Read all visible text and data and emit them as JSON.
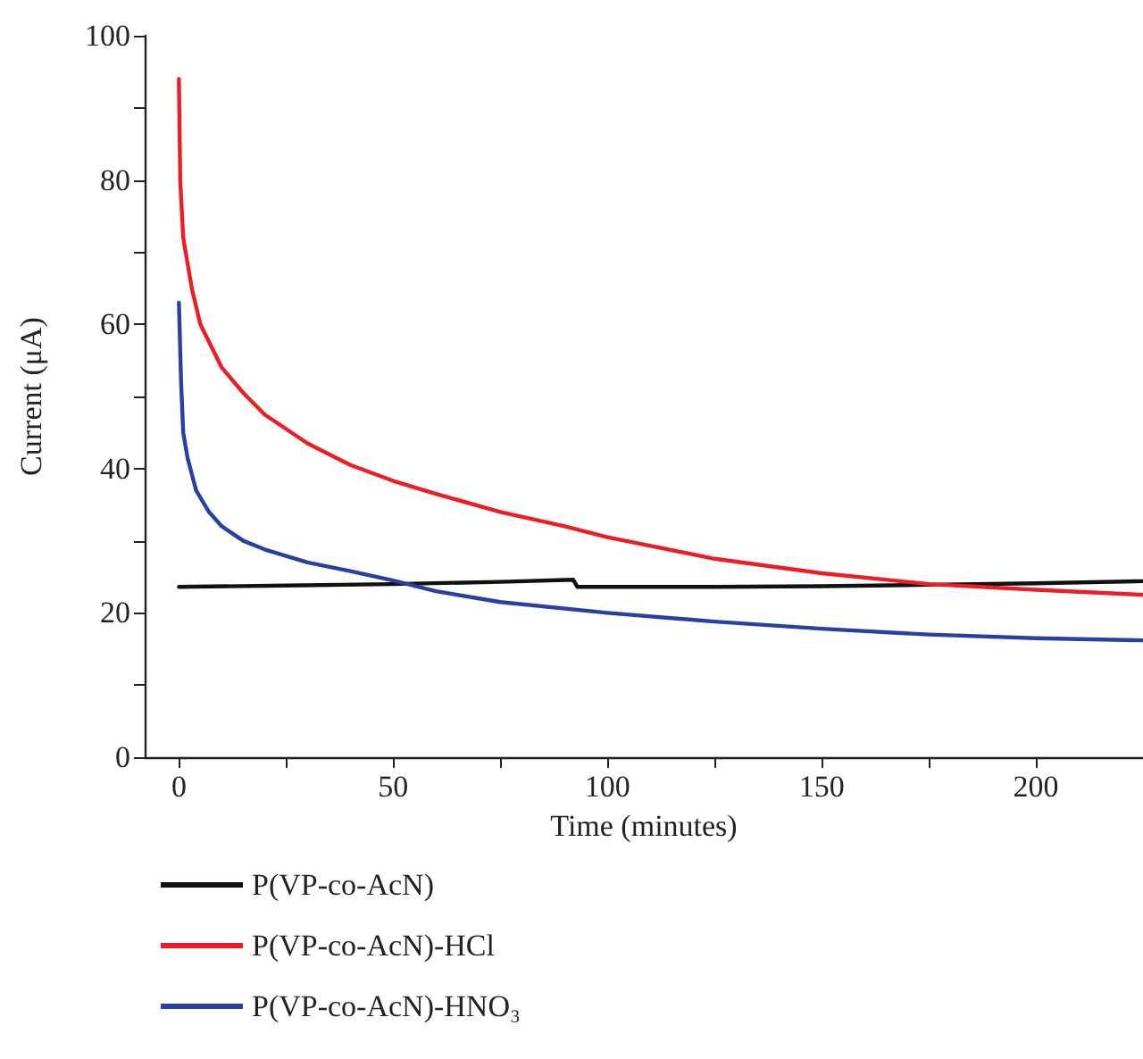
{
  "chart_data": {
    "type": "line",
    "xlabel": "Time (minutes)",
    "ylabel": "Current (μA)",
    "xlim": [
      -8,
      225
    ],
    "ylim": [
      0,
      100
    ],
    "xticks": [
      0,
      {
        "value": 25,
        "label": null
      },
      50,
      {
        "value": 75,
        "label": null
      },
      100,
      {
        "value": 125,
        "label": null
      },
      150,
      {
        "value": 175,
        "label": null
      },
      200
    ],
    "yticks": [
      0,
      {
        "value": 10,
        "label": null
      },
      20,
      {
        "value": 30,
        "label": null
      },
      40,
      {
        "value": 50,
        "label": null
      },
      60,
      {
        "value": 70,
        "label": null
      },
      80,
      {
        "value": 90,
        "label": null
      },
      100
    ],
    "grid": false,
    "legend": "bottom left",
    "marker": "none",
    "line_style": "solid",
    "series": [
      {
        "name": "P(VP-co-AcN)",
        "color": "#111111",
        "x": [
          0,
          25,
          50,
          75,
          92,
          93,
          125,
          150,
          175,
          200,
          225
        ],
        "values": [
          23.6,
          23.8,
          24,
          24.3,
          24.6,
          23.6,
          23.6,
          23.7,
          23.9,
          24.1,
          24.4
        ]
      },
      {
        "name": "P(VP-co-AcN)-HCl",
        "color": "#ee1c24",
        "x": [
          0,
          0.3,
          1,
          3,
          5,
          10,
          15,
          20,
          30,
          40,
          50,
          60,
          75,
          90,
          100,
          125,
          150,
          175,
          200,
          225
        ],
        "values": [
          94,
          80,
          72,
          65,
          60,
          54,
          50.5,
          47.5,
          43.5,
          40.5,
          38.3,
          36.5,
          34,
          32,
          30.5,
          27.5,
          25.5,
          24,
          23.2,
          22.5
        ]
      },
      {
        "name": "P(VP-co-AcN)-HNO₃",
        "color": "#2b3fa0",
        "x": [
          0,
          0.5,
          1,
          2,
          4,
          7,
          10,
          15,
          20,
          30,
          40,
          50,
          60,
          75,
          100,
          125,
          150,
          175,
          200,
          225
        ],
        "values": [
          63,
          52,
          45,
          41.5,
          37,
          34,
          32,
          30,
          28.8,
          27,
          25.8,
          24.5,
          23,
          21.5,
          20,
          18.8,
          17.8,
          17,
          16.5,
          16.2
        ]
      }
    ]
  }
}
